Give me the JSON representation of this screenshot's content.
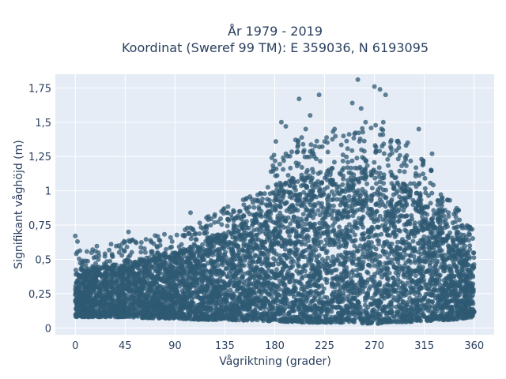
{
  "chart_data": {
    "type": "scatter",
    "title_line1": "År 1979 - 2019",
    "title_line2": "Koordinat (Sweref 99 TM): E 359036, N 6193095",
    "xlabel": "Vågriktning (grader)",
    "ylabel": "Signifikant våghöjd (m)",
    "xlim": [
      -18,
      378
    ],
    "ylim": [
      -0.05,
      1.85
    ],
    "x_ticks": [
      0,
      45,
      90,
      135,
      180,
      225,
      270,
      315,
      360
    ],
    "x_tick_labels": [
      "0",
      "45",
      "90",
      "135",
      "180",
      "225",
      "270",
      "315",
      "360"
    ],
    "y_ticks": [
      0,
      0.25,
      0.5,
      0.75,
      1,
      1.25,
      1.5,
      1.75
    ],
    "y_tick_labels": [
      "0",
      "0,25",
      "0,5",
      "0,75",
      "1",
      "1,25",
      "1,5",
      "1,75"
    ],
    "grid": true,
    "marker_color": "#2f5a73",
    "envelope": {
      "x": [
        0,
        20,
        45,
        70,
        90,
        110,
        135,
        160,
        180,
        200,
        225,
        250,
        270,
        290,
        315,
        340,
        360
      ],
      "y_min": [
        0.08,
        0.08,
        0.08,
        0.07,
        0.07,
        0.06,
        0.06,
        0.05,
        0.05,
        0.04,
        0.04,
        0.04,
        0.03,
        0.04,
        0.05,
        0.06,
        0.08
      ],
      "y_max": [
        0.4,
        0.45,
        0.48,
        0.52,
        0.55,
        0.62,
        0.72,
        0.82,
        1.0,
        1.12,
        1.15,
        1.15,
        1.2,
        1.1,
        0.95,
        0.78,
        0.55
      ]
    },
    "outliers": [
      {
        "x": 0,
        "y": 0.67
      },
      {
        "x": 2,
        "y": 0.63
      },
      {
        "x": 48,
        "y": 0.7
      },
      {
        "x": 86,
        "y": 0.66
      },
      {
        "x": 104,
        "y": 0.73
      },
      {
        "x": 104,
        "y": 0.84
      },
      {
        "x": 120,
        "y": 0.79
      },
      {
        "x": 132,
        "y": 0.85
      },
      {
        "x": 181,
        "y": 1.36
      },
      {
        "x": 186,
        "y": 1.5
      },
      {
        "x": 190,
        "y": 1.47
      },
      {
        "x": 202,
        "y": 1.67
      },
      {
        "x": 208,
        "y": 1.45
      },
      {
        "x": 212,
        "y": 1.55
      },
      {
        "x": 220,
        "y": 1.7
      },
      {
        "x": 225,
        "y": 1.36
      },
      {
        "x": 234,
        "y": 1.45
      },
      {
        "x": 242,
        "y": 1.4
      },
      {
        "x": 250,
        "y": 1.64
      },
      {
        "x": 255,
        "y": 1.81
      },
      {
        "x": 258,
        "y": 1.6
      },
      {
        "x": 262,
        "y": 1.5
      },
      {
        "x": 270,
        "y": 1.76
      },
      {
        "x": 275,
        "y": 1.74
      },
      {
        "x": 280,
        "y": 1.7
      },
      {
        "x": 278,
        "y": 1.5
      },
      {
        "x": 300,
        "y": 1.35
      },
      {
        "x": 310,
        "y": 1.45
      },
      {
        "x": 322,
        "y": 1.27
      },
      {
        "x": 338,
        "y": 0.93
      },
      {
        "x": 352,
        "y": 0.73
      }
    ]
  }
}
